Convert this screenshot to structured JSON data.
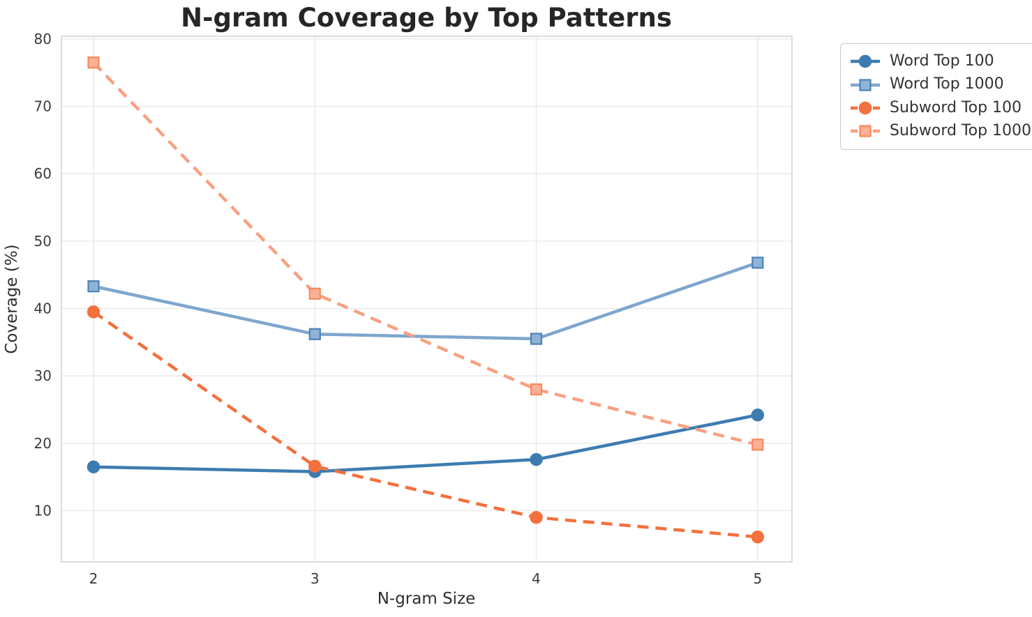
{
  "chart_data": {
    "type": "line",
    "title": "N-gram Coverage by Top Patterns",
    "xlabel": "N-gram Size",
    "ylabel": "Coverage (%)",
    "x": [
      2,
      3,
      4,
      5
    ],
    "xticks": [
      "2",
      "3",
      "4",
      "5"
    ],
    "yticks": [
      10,
      20,
      30,
      40,
      50,
      60,
      70,
      80
    ],
    "xlim": [
      1.855,
      5.155
    ],
    "ylim": [
      2.4,
      80.4
    ],
    "grid": true,
    "legend_position": "outside-upper-right",
    "series": [
      {
        "name": "Word Top 100",
        "values": [
          16.5,
          15.8,
          17.6,
          24.2
        ],
        "color": "#3d7cb1",
        "marker_fill": "#3d7cb1",
        "marker_edge": "#3d7cb1",
        "line_style": "solid",
        "marker": "circle"
      },
      {
        "name": "Word Top 1000",
        "values": [
          43.3,
          36.2,
          35.5,
          46.8
        ],
        "color": "#7ea6ce",
        "marker_fill": "#8fb3d6",
        "marker_edge": "#4c82b6",
        "line_style": "solid",
        "marker": "square"
      },
      {
        "name": "Subword Top 100",
        "values": [
          39.5,
          16.6,
          9.0,
          6.1
        ],
        "color": "#f4703c",
        "marker_fill": "#f4703c",
        "marker_edge": "#f4703c",
        "line_style": "dashed",
        "marker": "circle"
      },
      {
        "name": "Subword Top 1000",
        "values": [
          76.5,
          42.2,
          28.0,
          19.8
        ],
        "color": "#f9a082",
        "marker_fill": "#fbb098",
        "marker_edge": "#f58a58",
        "line_style": "dashed",
        "marker": "square"
      }
    ],
    "style": {
      "grid_color": "#e7e7e7",
      "spine_color": "#d0d0d0",
      "title_color": "#262626",
      "tick_color": "#3b3b3b"
    }
  }
}
